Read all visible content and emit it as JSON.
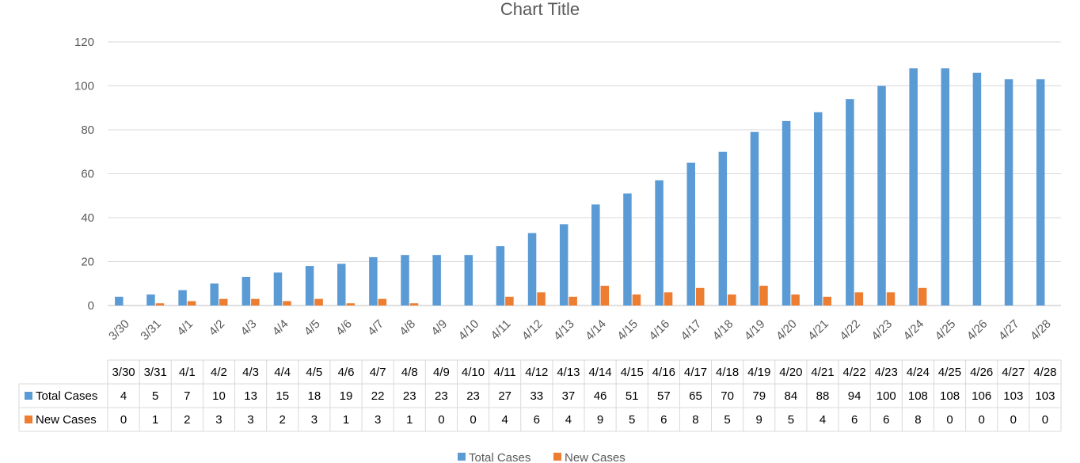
{
  "chart_data": {
    "type": "bar",
    "title": "Chart Title",
    "categories": [
      "3/30",
      "3/31",
      "4/1",
      "4/2",
      "4/3",
      "4/4",
      "4/5",
      "4/6",
      "4/7",
      "4/8",
      "4/9",
      "4/10",
      "4/11",
      "4/12",
      "4/13",
      "4/14",
      "4/15",
      "4/16",
      "4/17",
      "4/18",
      "4/19",
      "4/20",
      "4/21",
      "4/22",
      "4/23",
      "4/24",
      "4/25",
      "4/26",
      "4/27",
      "4/28"
    ],
    "series": [
      {
        "name": "Total Cases",
        "color": "#5B9BD5",
        "values": [
          4,
          5,
          7,
          10,
          13,
          15,
          18,
          19,
          22,
          23,
          23,
          23,
          27,
          33,
          37,
          46,
          51,
          57,
          65,
          70,
          79,
          84,
          88,
          94,
          100,
          108,
          108,
          106,
          103,
          103
        ]
      },
      {
        "name": "New Cases",
        "color": "#ED7D31",
        "values": [
          0,
          1,
          2,
          3,
          3,
          2,
          3,
          1,
          3,
          1,
          0,
          0,
          4,
          6,
          4,
          9,
          5,
          6,
          8,
          5,
          9,
          5,
          4,
          6,
          6,
          8,
          0,
          0,
          0,
          0
        ]
      }
    ],
    "ylim": [
      0,
      120
    ],
    "yticks": [
      0,
      20,
      40,
      60,
      80,
      100,
      120
    ],
    "grid": true,
    "data_table": true,
    "legend": "bottom"
  }
}
